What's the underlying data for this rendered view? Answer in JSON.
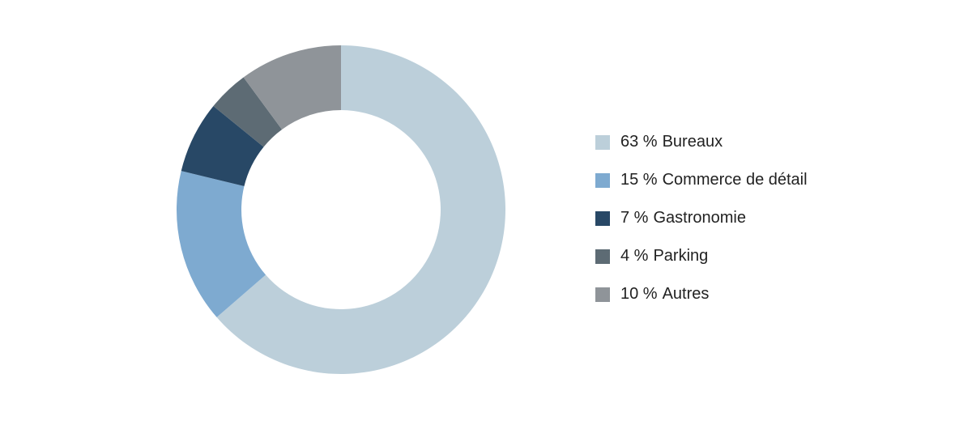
{
  "chart_data": {
    "type": "donut",
    "categories": [
      "Bureaux",
      "Commerce de détail",
      "Gastronomie",
      "Parking",
      "Autres"
    ],
    "values": [
      63,
      15,
      7,
      4,
      10
    ],
    "value_labels": [
      "63 %",
      "15 %",
      "7 %",
      "4 %",
      "10 %"
    ],
    "colors": [
      "#bccfda",
      "#7eaad0",
      "#284866",
      "#5d6b74",
      "#8f9499"
    ],
    "legend": "right"
  }
}
